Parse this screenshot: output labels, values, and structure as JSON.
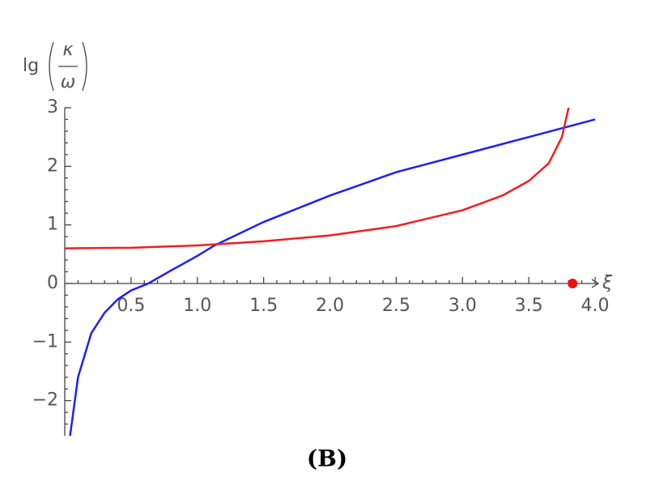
{
  "chart_data": {
    "type": "line",
    "ylabel": {
      "prefix": "lg",
      "numerator": "κ",
      "denominator": "ω"
    },
    "xlabel": "ξ",
    "caption": "(B)",
    "series": [
      {
        "color": "#2020ee",
        "x": [
          0.04,
          0.1,
          0.2,
          0.3,
          0.4,
          0.5,
          0.63,
          0.8,
          1.0,
          1.13,
          1.5,
          2.0,
          2.5,
          3.0,
          3.5,
          4.0
        ],
        "values": [
          -2.6,
          -1.6,
          -0.85,
          -0.5,
          -0.27,
          -0.12,
          0,
          0.22,
          0.47,
          0.65,
          1.05,
          1.5,
          1.9,
          2.2,
          2.5,
          2.8
        ]
      },
      {
        "color": "#ee2020",
        "x": [
          0,
          0.5,
          1.0,
          1.5,
          2.0,
          2.5,
          3.0,
          3.3,
          3.5,
          3.65,
          3.75,
          3.8
        ],
        "values": [
          0.6,
          0.61,
          0.65,
          0.72,
          0.82,
          0.98,
          1.25,
          1.5,
          1.75,
          2.05,
          2.5,
          3.0
        ]
      }
    ],
    "markers": [
      {
        "x": 3.83,
        "y": 0,
        "color": "#ee1111"
      }
    ],
    "xlim": [
      0,
      4.0
    ],
    "ylim": [
      -2.6,
      3
    ],
    "xticks": [
      0.5,
      {
        "value": 1,
        "label": "1.0"
      },
      1.5,
      {
        "value": 2,
        "label": "2.0"
      },
      2.5,
      {
        "value": 3,
        "label": "3.0"
      },
      3.5,
      {
        "value": 4,
        "label": "4.0"
      }
    ],
    "yticks": [
      {
        "value": -2,
        "label": "−2"
      },
      {
        "value": -1,
        "label": "−1"
      },
      0,
      1,
      2,
      3
    ],
    "xminorticks": [
      0.1,
      0.2,
      0.3,
      0.4,
      0.6,
      0.7,
      0.8,
      0.9,
      1.1,
      1.2,
      1.3,
      1.4,
      1.6,
      1.7,
      1.8,
      1.9,
      2.1,
      2.2,
      2.3,
      2.4,
      2.6,
      2.7,
      2.8,
      2.9,
      3.1,
      3.2,
      3.3,
      3.4,
      3.6,
      3.7,
      3.8,
      3.9
    ],
    "yminorticks": [
      -2.4,
      -2.2,
      -1.8,
      -1.6,
      -1.4,
      -1.2,
      -0.8,
      -0.6,
      -0.4,
      -0.2,
      0.2,
      0.4,
      0.6,
      0.8,
      1.2,
      1.4,
      1.6,
      1.8,
      2.2,
      2.4,
      2.6,
      2.8
    ]
  }
}
